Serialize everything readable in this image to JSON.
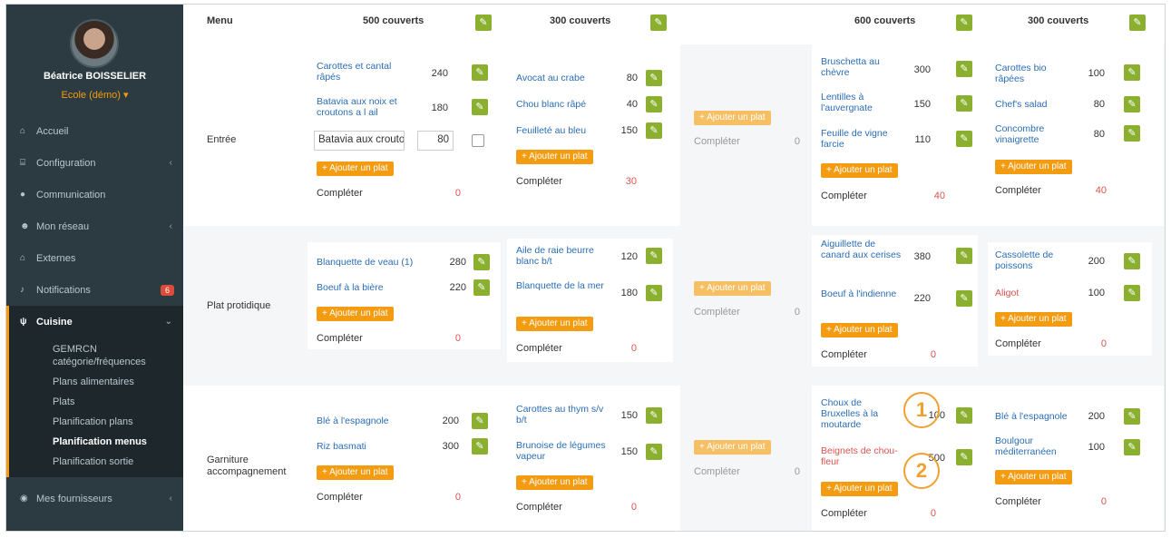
{
  "user": {
    "name": "Béatrice BOISSELIER",
    "org": "Ecole (démo) ▾"
  },
  "nav": {
    "accueil": "Accueil",
    "configuration": "Configuration",
    "communication": "Communication",
    "reseau": "Mon réseau",
    "externes": "Externes",
    "notifications": "Notifications",
    "notifications_badge": "6",
    "cuisine": "Cuisine",
    "fournisseurs": "Mes fournisseurs",
    "sub": [
      "GEMRCN catégorie/fréquences",
      "Plans alimentaires",
      "Plats",
      "Planification plans",
      "Planification menus",
      "Planification sortie"
    ]
  },
  "headers": {
    "menu": "Menu",
    "c1": "500 couverts",
    "c2": "300 couverts",
    "c4": "600 couverts",
    "c5": "300 couverts"
  },
  "rows": {
    "entree": "Entrée",
    "plat": "Plat protidique",
    "garniture": "Garniture accompagnement"
  },
  "labels": {
    "add": "+ Ajouter un plat",
    "complete": "Compléter"
  },
  "entree": {
    "c1": [
      {
        "name": "Carottes et cantal râpés",
        "qty": "240"
      },
      {
        "name": "Batavia aux noix et croutons a l ail",
        "qty": "180"
      }
    ],
    "c1_input": {
      "name": "Batavia aux croutons",
      "qty": "80"
    },
    "c1_comp": "0",
    "c2": [
      {
        "name": "Avocat au crabe",
        "qty": "80"
      },
      {
        "name": "Chou blanc râpé",
        "qty": "40"
      },
      {
        "name": "Feuilleté au bleu",
        "qty": "150"
      }
    ],
    "c2_comp": "30",
    "c3_comp": "0",
    "c4": [
      {
        "name": "Bruschetta au chèvre",
        "qty": "300"
      },
      {
        "name": "Lentilles à l'auvergnate",
        "qty": "150"
      },
      {
        "name": "Feuille de vigne farcie",
        "qty": "110"
      }
    ],
    "c4_comp": "40",
    "c5": [
      {
        "name": "Carottes bio râpées",
        "qty": "100"
      },
      {
        "name": "Chef's salad",
        "qty": "80"
      },
      {
        "name": "Concombre vinaigrette",
        "qty": "80"
      }
    ],
    "c5_comp": "40"
  },
  "plat": {
    "c1": [
      {
        "name": "Blanquette de veau (1)",
        "qty": "280"
      },
      {
        "name": "Boeuf à la bière",
        "qty": "220"
      }
    ],
    "c1_comp": "0",
    "c2": [
      {
        "name": "Aile de raie beurre blanc b/t",
        "qty": "120"
      },
      {
        "name": "Blanquette de la mer",
        "qty": "180"
      }
    ],
    "c2_comp": "0",
    "c3_comp": "0",
    "c4": [
      {
        "name": "Aiguillette de canard aux cerises",
        "qty": "380"
      },
      {
        "name": "Boeuf à l'indienne",
        "qty": "220"
      }
    ],
    "c4_comp": "0",
    "c5": [
      {
        "name": "Cassolette de poissons",
        "qty": "200"
      },
      {
        "name": "Aligot",
        "qty": "100"
      }
    ],
    "c5_comp": "0"
  },
  "garniture": {
    "c1": [
      {
        "name": "Blé à l'espagnole",
        "qty": "200"
      },
      {
        "name": "Riz basmati",
        "qty": "300"
      }
    ],
    "c1_comp": "0",
    "c2": [
      {
        "name": "Carottes au thym s/v b/t",
        "qty": "150"
      },
      {
        "name": "Brunoise de légumes vapeur",
        "qty": "150"
      }
    ],
    "c2_comp": "0",
    "c3_comp": "0",
    "c4": [
      {
        "name": "Choux de Bruxelles à la moutarde",
        "qty": "100"
      },
      {
        "name": "Beignets de chou-fleur",
        "qty": "500"
      }
    ],
    "c4_comp": "0",
    "c5": [
      {
        "name": "Blé à l'espagnole",
        "qty": "200"
      },
      {
        "name": "Boulgour méditerranéen",
        "qty": "100"
      }
    ],
    "c5_comp": "0"
  },
  "annotations": [
    "1",
    "2"
  ],
  "colors": {
    "sidebar": "#2c3b41",
    "accent": "#f39c12",
    "edit": "#8bb030",
    "link": "#2a6db5",
    "danger": "#d9534f"
  }
}
